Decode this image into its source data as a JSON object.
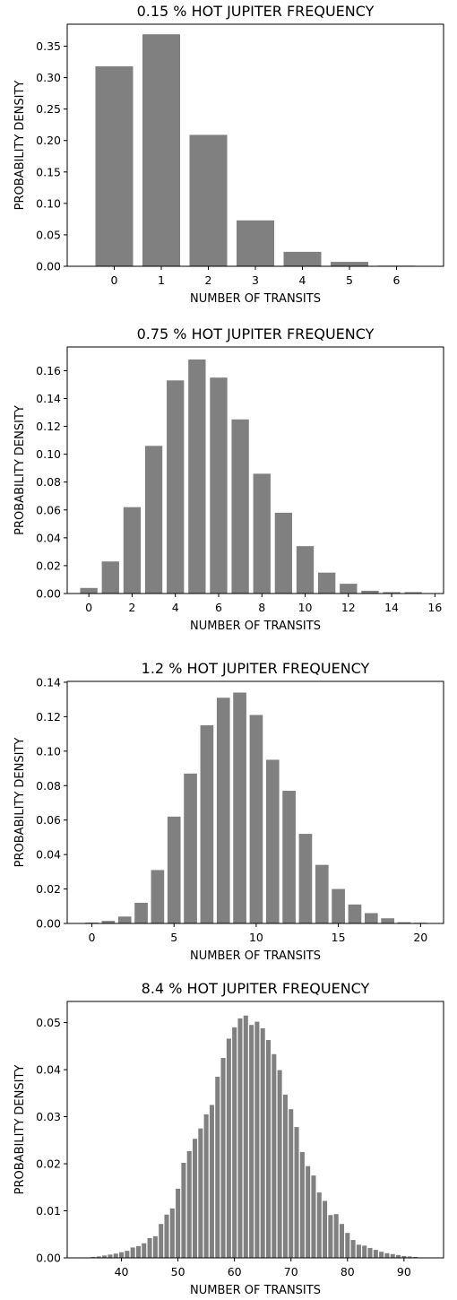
{
  "chart_data": [
    {
      "type": "bar",
      "title": "0.15 % HOT JUPITER FREQUENCY",
      "xlabel": "NUMBER OF TRANSITS",
      "ylabel": "PROBABILITY DENSITY",
      "xlim": [
        -1,
        7
      ],
      "ylim": [
        0,
        0.385
      ],
      "xticks": [
        0,
        1,
        2,
        3,
        4,
        5,
        6
      ],
      "yticks": [
        0.0,
        0.05,
        0.1,
        0.15,
        0.2,
        0.25,
        0.3,
        0.35
      ],
      "ytick_labels": [
        "0.00",
        "0.05",
        "0.10",
        "0.15",
        "0.20",
        "0.25",
        "0.30",
        "0.35"
      ],
      "bar_color": "#808080",
      "x": [
        0,
        1,
        2,
        3,
        4,
        5,
        6
      ],
      "values": [
        0.318,
        0.369,
        0.209,
        0.073,
        0.023,
        0.007,
        0.001
      ]
    },
    {
      "type": "bar",
      "title": "0.75 % HOT JUPITER FREQUENCY",
      "xlabel": "NUMBER OF TRANSITS",
      "ylabel": "PROBABILITY DENSITY",
      "xlim": [
        -1,
        16.4
      ],
      "ylim": [
        0,
        0.177
      ],
      "xticks": [
        0,
        2,
        4,
        6,
        8,
        10,
        12,
        14,
        16
      ],
      "yticks": [
        0.0,
        0.02,
        0.04,
        0.06,
        0.08,
        0.1,
        0.12,
        0.14,
        0.16
      ],
      "ytick_labels": [
        "0.00",
        "0.02",
        "0.04",
        "0.06",
        "0.08",
        "0.10",
        "0.12",
        "0.14",
        "0.16"
      ],
      "bar_color": "#808080",
      "x": [
        0,
        1,
        2,
        3,
        4,
        5,
        6,
        7,
        8,
        9,
        10,
        11,
        12,
        13,
        14,
        15
      ],
      "values": [
        0.004,
        0.023,
        0.062,
        0.106,
        0.153,
        0.168,
        0.155,
        0.125,
        0.086,
        0.058,
        0.034,
        0.015,
        0.007,
        0.002,
        0.001,
        0.001
      ]
    },
    {
      "type": "bar",
      "title": "1.2 % HOT JUPITER FREQUENCY",
      "xlabel": "NUMBER OF TRANSITS",
      "ylabel": "PROBABILITY DENSITY",
      "xlim": [
        -1.5,
        21.4
      ],
      "ylim": [
        0,
        0.1405
      ],
      "xticks": [
        0,
        5,
        10,
        15,
        20
      ],
      "yticks": [
        0.0,
        0.02,
        0.04,
        0.06,
        0.08,
        0.1,
        0.12,
        0.14
      ],
      "ytick_labels": [
        "0.00",
        "0.02",
        "0.04",
        "0.06",
        "0.08",
        "0.10",
        "0.12",
        "0.14"
      ],
      "bar_color": "#808080",
      "x": [
        0,
        1,
        2,
        3,
        4,
        5,
        6,
        7,
        8,
        9,
        10,
        11,
        12,
        13,
        14,
        15,
        16,
        17,
        18,
        19,
        20
      ],
      "values": [
        0.0005,
        0.0015,
        0.004,
        0.012,
        0.031,
        0.062,
        0.087,
        0.115,
        0.131,
        0.134,
        0.121,
        0.095,
        0.077,
        0.052,
        0.034,
        0.02,
        0.011,
        0.006,
        0.003,
        0.0007,
        0.0004
      ]
    },
    {
      "type": "bar",
      "title": "8.4 % HOT JUPITER FREQUENCY",
      "xlabel": "NUMBER OF TRANSITS",
      "ylabel": "PROBABILITY DENSITY",
      "xlim": [
        30.4,
        97
      ],
      "ylim": [
        0,
        0.0545
      ],
      "xticks": [
        40,
        50,
        60,
        70,
        80,
        90
      ],
      "yticks": [
        0.0,
        0.01,
        0.02,
        0.03,
        0.04,
        0.05
      ],
      "ytick_labels": [
        "0.00",
        "0.01",
        "0.02",
        "0.03",
        "0.04",
        "0.05"
      ],
      "bar_color": "#808080",
      "x": [
        34,
        35,
        36,
        37,
        38,
        39,
        40,
        41,
        42,
        43,
        44,
        45,
        46,
        47,
        48,
        49,
        50,
        51,
        52,
        53,
        54,
        55,
        56,
        57,
        58,
        59,
        60,
        61,
        62,
        63,
        64,
        65,
        66,
        67,
        68,
        69,
        70,
        71,
        72,
        73,
        74,
        75,
        76,
        77,
        78,
        79,
        80,
        81,
        82,
        83,
        84,
        85,
        86,
        87,
        88,
        89,
        90,
        91,
        92,
        93
      ],
      "values": [
        0.0001,
        0.0002,
        0.0003,
        0.0005,
        0.0007,
        0.0009,
        0.0012,
        0.0015,
        0.0022,
        0.0025,
        0.0031,
        0.0042,
        0.0046,
        0.0072,
        0.0092,
        0.0105,
        0.0147,
        0.0202,
        0.0227,
        0.0253,
        0.0275,
        0.0305,
        0.0325,
        0.0385,
        0.0425,
        0.0466,
        0.049,
        0.0509,
        0.0515,
        0.0495,
        0.0502,
        0.0488,
        0.0463,
        0.0433,
        0.0399,
        0.0347,
        0.0316,
        0.0278,
        0.0225,
        0.0195,
        0.0175,
        0.0139,
        0.0121,
        0.0091,
        0.0093,
        0.0072,
        0.0053,
        0.0038,
        0.0028,
        0.0026,
        0.0021,
        0.0017,
        0.0013,
        0.001,
        0.0008,
        0.0006,
        0.0004,
        0.0003,
        0.0002,
        0.0001
      ]
    }
  ]
}
